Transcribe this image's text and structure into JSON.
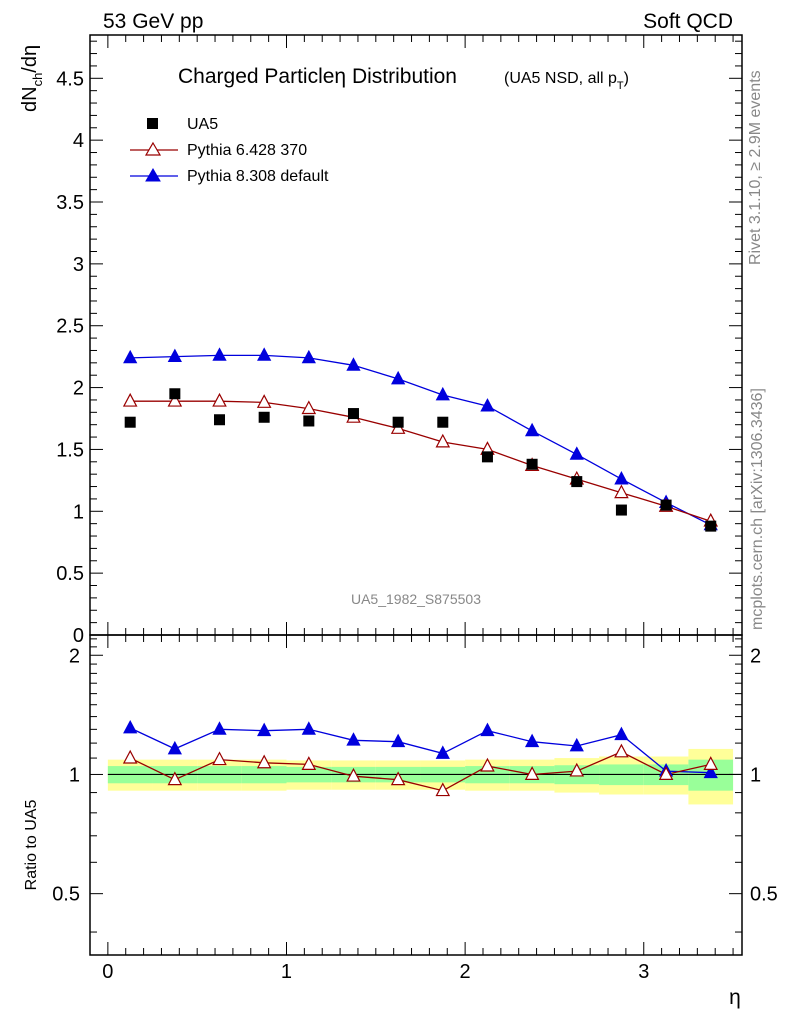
{
  "header": {
    "left": "53 GeV pp",
    "right": "Soft QCD"
  },
  "side_labels": {
    "rivet": "Rivet 3.1.10, ≥ 2.9M events",
    "mcplots": "mcplots.cern.ch [arXiv:1306.3436]"
  },
  "watermark": "UA5_1982_S875503",
  "colors": {
    "data": "#000000",
    "pythia6": "#990000",
    "pythia8": "#0000dd",
    "band_inner": "#99ff99",
    "band_outer": "#ffff99"
  },
  "chart_data": [
    {
      "type": "scatter",
      "title": "Charged Particle η Distribution",
      "title_main": "Charged Particle",
      "title_eta": "η",
      "title_rest": " Distribution",
      "title_note": "(UA5 NSD, all p",
      "title_note_sub": "T",
      "title_note_close": ")",
      "ylabel_main": "dN",
      "ylabel_sub": "ch",
      "ylabel_rest": "/dη",
      "xlim": [
        -0.1,
        3.55
      ],
      "ylim": [
        0,
        4.85
      ],
      "y_ticks": [
        0,
        0.5,
        1,
        1.5,
        2,
        2.5,
        3,
        3.5,
        4,
        4.5
      ],
      "y_tick_labels": [
        "0",
        "0.5",
        "1",
        "1.5",
        "2",
        "2.5",
        "3",
        "3.5",
        "4",
        "4.5"
      ],
      "legend_position": "top-left",
      "x": [
        0.125,
        0.375,
        0.625,
        0.875,
        1.125,
        1.375,
        1.625,
        1.875,
        2.125,
        2.375,
        2.625,
        2.875,
        3.125,
        3.375
      ],
      "series": [
        {
          "name": "UA5",
          "marker": "square",
          "values": [
            1.72,
            1.95,
            1.74,
            1.76,
            1.73,
            1.79,
            1.72,
            1.72,
            1.44,
            1.38,
            1.24,
            1.01,
            1.05,
            0.88
          ]
        },
        {
          "name": "Pythia 6.428 370",
          "marker": "open-triangle",
          "values": [
            1.89,
            1.89,
            1.89,
            1.88,
            1.83,
            1.76,
            1.67,
            1.56,
            1.5,
            1.37,
            1.26,
            1.15,
            1.04,
            0.92
          ]
        },
        {
          "name": "Pythia 8.308 default",
          "marker": "filled-triangle",
          "values": [
            2.24,
            2.25,
            2.26,
            2.26,
            2.24,
            2.18,
            2.07,
            1.94,
            1.85,
            1.65,
            1.46,
            1.26,
            1.07,
            0.89
          ]
        }
      ]
    },
    {
      "type": "line",
      "ylabel": "Ratio to UA5",
      "xlabel": "η",
      "xlim": [
        -0.1,
        3.55
      ],
      "ylim": [
        0.35,
        2.25
      ],
      "x_ticks": [
        0,
        1,
        2,
        3
      ],
      "x_tick_labels": [
        "0",
        "1",
        "2",
        "3"
      ],
      "y_ticks": [
        0.5,
        1,
        2
      ],
      "y_tick_labels": [
        "0.5",
        "1",
        "2"
      ],
      "x": [
        0.125,
        0.375,
        0.625,
        0.875,
        1.125,
        1.375,
        1.625,
        1.875,
        2.125,
        2.375,
        2.625,
        2.875,
        3.125,
        3.375
      ],
      "band_inner": [
        0.05,
        0.05,
        0.05,
        0.05,
        0.045,
        0.045,
        0.045,
        0.045,
        0.05,
        0.05,
        0.055,
        0.06,
        0.06,
        0.09
      ],
      "band_outer": [
        0.09,
        0.09,
        0.09,
        0.09,
        0.085,
        0.085,
        0.085,
        0.085,
        0.09,
        0.09,
        0.1,
        0.11,
        0.11,
        0.16
      ],
      "series": [
        {
          "name": "Pythia 6.428 370",
          "marker": "open-triangle",
          "values": [
            1.1,
            0.97,
            1.09,
            1.07,
            1.06,
            0.99,
            0.97,
            0.91,
            1.05,
            1.0,
            1.02,
            1.14,
            1.0,
            1.06
          ]
        },
        {
          "name": "Pythia 8.308 default",
          "marker": "filled-triangle",
          "values": [
            1.31,
            1.16,
            1.3,
            1.29,
            1.3,
            1.22,
            1.21,
            1.13,
            1.29,
            1.21,
            1.18,
            1.26,
            1.02,
            1.01
          ]
        }
      ]
    }
  ]
}
